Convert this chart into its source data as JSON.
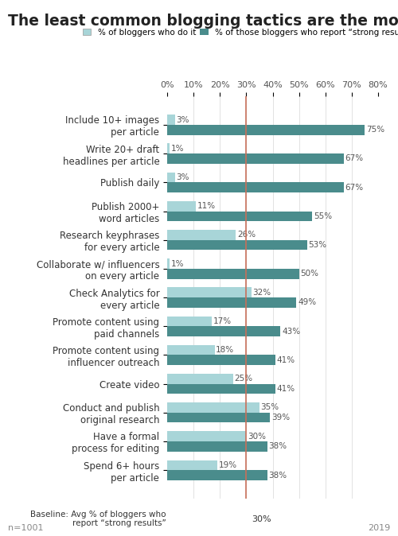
{
  "title": "The least common blogging tactics are the most effective",
  "categories": [
    "Include 10+ images\nper article",
    "Write 20+ draft\nheadlines per article",
    "Publish daily",
    "Publish 2000+\nword articles",
    "Research keyphrases\nfor every article",
    "Collaborate w/ influencers\non every article",
    "Check Analytics for\nevery article",
    "Promote content using\npaid channels",
    "Promote content using\ninfluencer outreach",
    "Create video",
    "Conduct and publish\noriginal research",
    "Have a formal\nprocess for editing",
    "Spend 6+ hours\nper article"
  ],
  "do_it_pct": [
    3,
    1,
    3,
    11,
    26,
    1,
    32,
    17,
    18,
    25,
    35,
    30,
    19
  ],
  "strong_results_pct": [
    75,
    67,
    67,
    55,
    53,
    50,
    49,
    43,
    41,
    41,
    39,
    38,
    38
  ],
  "color_light": "#a8d5d8",
  "color_dark": "#4a8c8c",
  "baseline": 30,
  "baseline_label": "Baseline: Avg % of bloggers who\nreport “strong results”",
  "baseline_value_label": "30%",
  "refline_color": "#c8705a",
  "legend_light": "% of bloggers who do it",
  "legend_dark": "% of those bloggers who report “strong results”",
  "footnote_left": "n=1001",
  "footnote_right": "2019",
  "xlim": [
    0,
    80
  ],
  "xticks": [
    0,
    10,
    20,
    30,
    40,
    50,
    60,
    70,
    80
  ],
  "bg_color": "#ffffff",
  "bar_height": 0.35,
  "title_fontsize": 13.5,
  "label_fontsize": 8.5,
  "tick_fontsize": 8,
  "footnote_fontsize": 8
}
